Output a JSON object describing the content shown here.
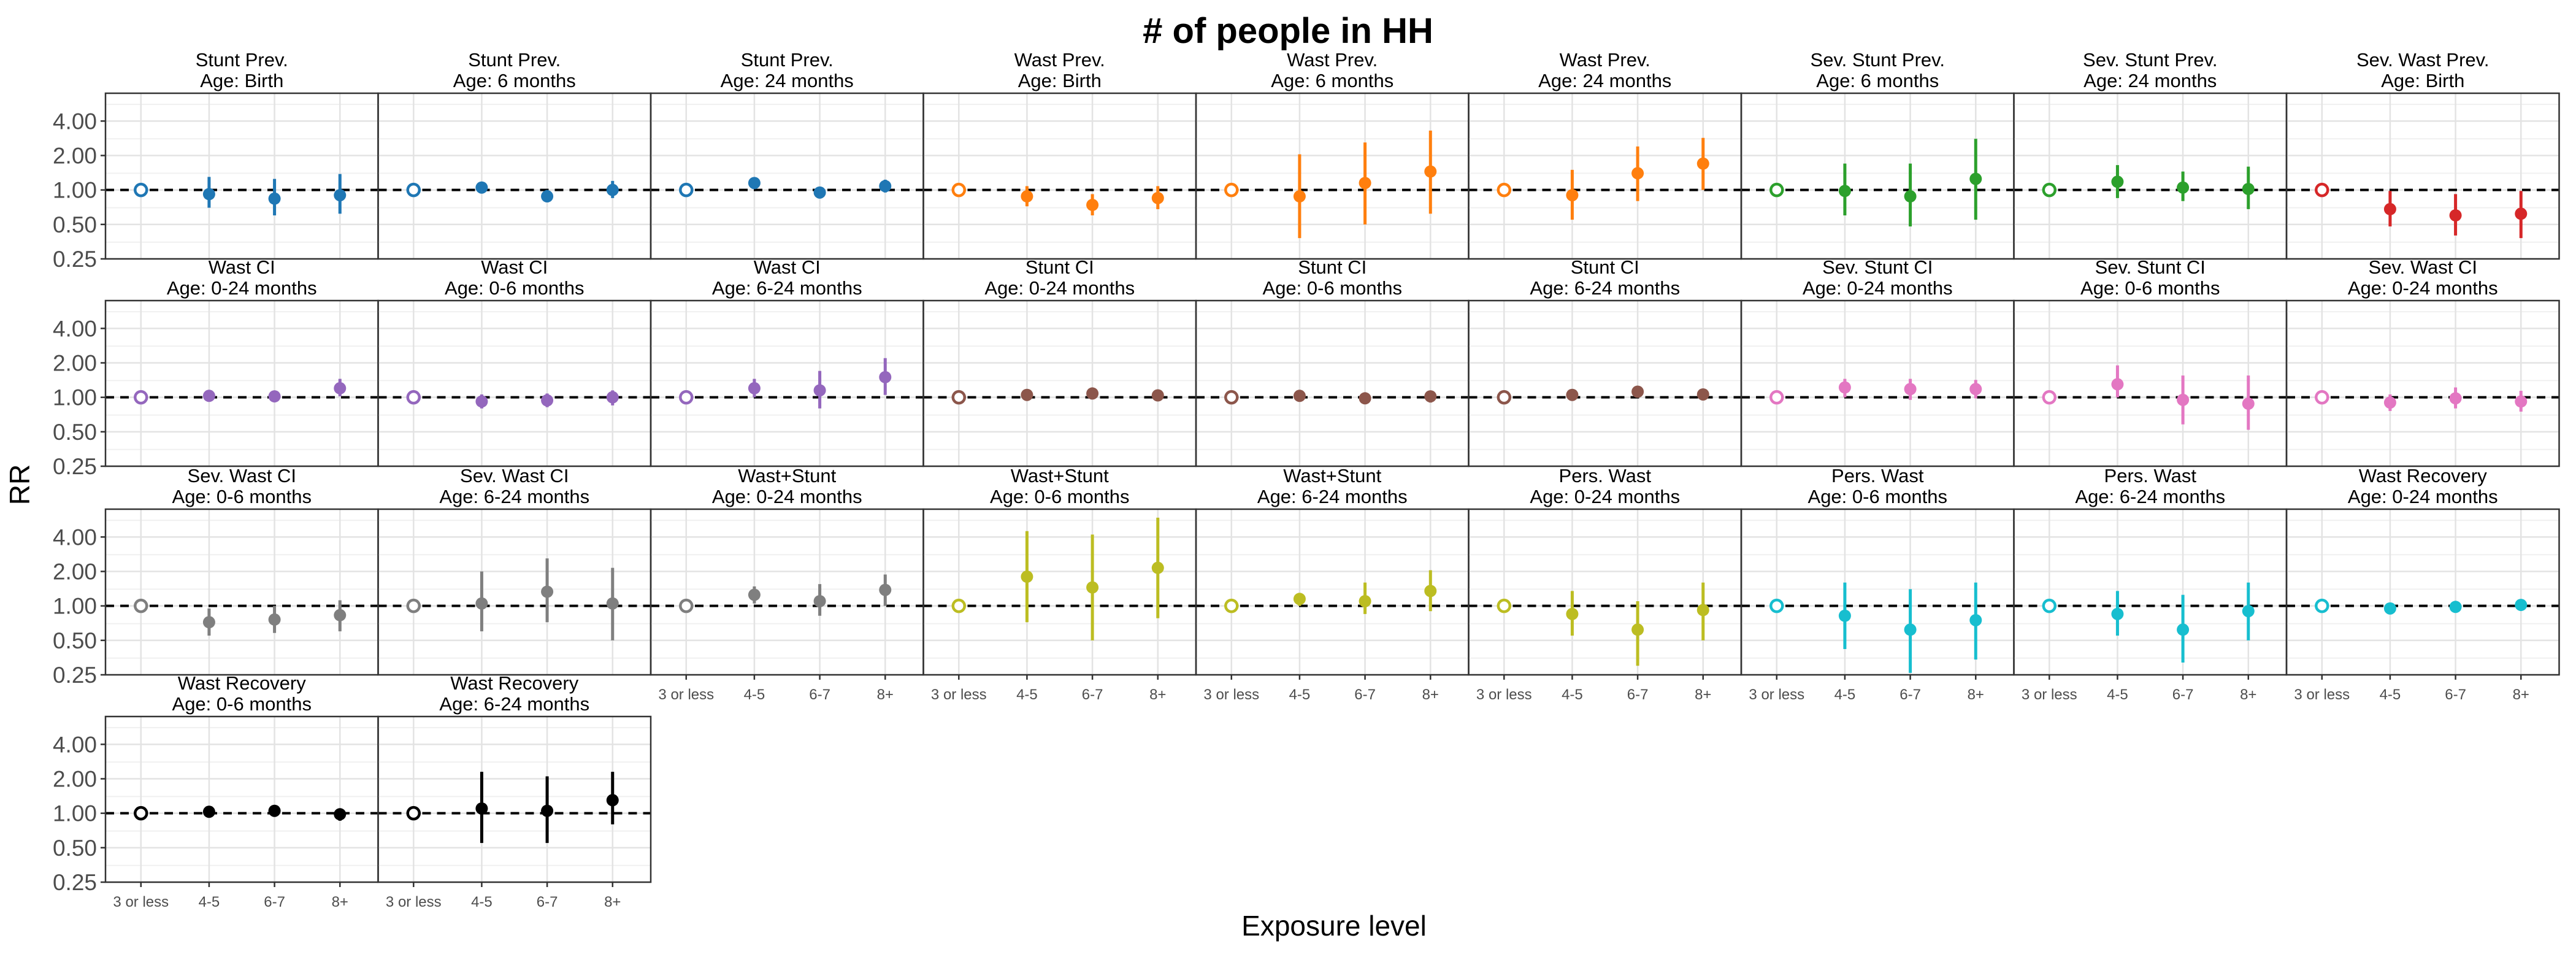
{
  "chart_data": {
    "type": "scatter",
    "title": "# of people in HH",
    "xlabel": "Exposure level",
    "ylabel": "RR",
    "y_scale": "log",
    "ylim": [
      0.25,
      7
    ],
    "y_ticks": [
      0.25,
      0.5,
      1,
      2,
      4
    ],
    "y_tick_labels": [
      "0.25",
      "0.50",
      "1.00",
      "2.00",
      "4.00"
    ],
    "reference_line": 1,
    "grid": true,
    "categories": [
      "3 or less",
      "4-5",
      "6-7",
      "8+"
    ],
    "reference_category": "3 or less",
    "panels": [
      {
        "title": "Stunt Prev.",
        "subtitle": "Age: Birth",
        "color": "#1f77b4",
        "rr": [
          1.0,
          0.92,
          0.84,
          0.9
        ],
        "lower": [
          1.0,
          0.7,
          0.6,
          0.62
        ],
        "upper": [
          1.0,
          1.3,
          1.25,
          1.38
        ]
      },
      {
        "title": "Stunt Prev.",
        "subtitle": "Age: 6 months",
        "color": "#1f77b4",
        "rr": [
          1.0,
          1.05,
          0.88,
          1.0
        ],
        "lower": [
          1.0,
          0.95,
          0.78,
          0.85
        ],
        "upper": [
          1.0,
          1.16,
          1.0,
          1.2
        ]
      },
      {
        "title": "Stunt Prev.",
        "subtitle": "Age: 24 months",
        "color": "#1f77b4",
        "rr": [
          1.0,
          1.15,
          0.95,
          1.08
        ],
        "lower": [
          1.0,
          1.08,
          0.89,
          0.95
        ],
        "upper": [
          1.0,
          1.23,
          1.02,
          1.23
        ]
      },
      {
        "title": "Wast Prev.",
        "subtitle": "Age: Birth",
        "color": "#ff7f0e",
        "rr": [
          1.0,
          0.88,
          0.74,
          0.85
        ],
        "lower": [
          1.0,
          0.72,
          0.6,
          0.68
        ],
        "upper": [
          1.0,
          1.08,
          0.92,
          1.08
        ]
      },
      {
        "title": "Wast Prev.",
        "subtitle": "Age: 6 months",
        "color": "#ff7f0e",
        "rr": [
          1.0,
          0.88,
          1.15,
          1.45
        ],
        "lower": [
          1.0,
          0.38,
          0.5,
          0.62
        ],
        "upper": [
          1.0,
          2.05,
          2.6,
          3.3
        ]
      },
      {
        "title": "Wast Prev.",
        "subtitle": "Age: 24 months",
        "color": "#ff7f0e",
        "rr": [
          1.0,
          0.9,
          1.4,
          1.7
        ],
        "lower": [
          1.0,
          0.55,
          0.8,
          1.0
        ],
        "upper": [
          1.0,
          1.5,
          2.4,
          2.85
        ]
      },
      {
        "title": "Sev. Stunt Prev.",
        "subtitle": "Age: 6 months",
        "color": "#2ca02c",
        "rr": [
          1.0,
          0.98,
          0.88,
          1.25
        ],
        "lower": [
          1.0,
          0.6,
          0.48,
          0.55
        ],
        "upper": [
          1.0,
          1.7,
          1.7,
          2.8
        ]
      },
      {
        "title": "Sev. Stunt Prev.",
        "subtitle": "Age: 24 months",
        "color": "#2ca02c",
        "rr": [
          1.0,
          1.18,
          1.05,
          1.02
        ],
        "lower": [
          1.0,
          0.85,
          0.8,
          0.68
        ],
        "upper": [
          1.0,
          1.65,
          1.45,
          1.6
        ]
      },
      {
        "title": "Sev. Wast Prev.",
        "subtitle": "Age: Birth",
        "color": "#d62728",
        "rr": [
          1.0,
          0.68,
          0.6,
          0.62
        ],
        "lower": [
          1.0,
          0.48,
          0.4,
          0.38
        ],
        "upper": [
          1.0,
          0.98,
          0.92,
          0.98
        ]
      },
      {
        "title": "Wast CI",
        "subtitle": "Age: 0-24 months",
        "color": "#9467bd",
        "rr": [
          1.0,
          1.03,
          1.02,
          1.2
        ],
        "lower": [
          1.0,
          0.92,
          0.95,
          1.02
        ],
        "upper": [
          1.0,
          1.15,
          1.1,
          1.45
        ]
      },
      {
        "title": "Wast CI",
        "subtitle": "Age: 0-6 months",
        "color": "#9467bd",
        "rr": [
          1.0,
          0.92,
          0.94,
          1.0
        ],
        "lower": [
          1.0,
          0.8,
          0.82,
          0.85
        ],
        "upper": [
          1.0,
          1.06,
          1.08,
          1.15
        ]
      },
      {
        "title": "Wast CI",
        "subtitle": "Age: 6-24 months",
        "color": "#9467bd",
        "rr": [
          1.0,
          1.2,
          1.15,
          1.5
        ],
        "lower": [
          1.0,
          1.0,
          0.8,
          1.05
        ],
        "upper": [
          1.0,
          1.45,
          1.7,
          2.2
        ]
      },
      {
        "title": "Stunt CI",
        "subtitle": "Age: 0-24 months",
        "color": "#8c564b",
        "rr": [
          1.0,
          1.05,
          1.08,
          1.04
        ],
        "lower": [
          1.0,
          1.0,
          1.03,
          0.99
        ],
        "upper": [
          1.0,
          1.1,
          1.13,
          1.09
        ]
      },
      {
        "title": "Stunt CI",
        "subtitle": "Age: 0-6 months",
        "color": "#8c564b",
        "rr": [
          1.0,
          1.03,
          0.98,
          1.02
        ],
        "lower": [
          1.0,
          0.94,
          0.9,
          0.9
        ],
        "upper": [
          1.0,
          1.12,
          1.06,
          1.14
        ]
      },
      {
        "title": "Stunt CI",
        "subtitle": "Age: 6-24 months",
        "color": "#8c564b",
        "rr": [
          1.0,
          1.05,
          1.12,
          1.06
        ],
        "lower": [
          1.0,
          1.0,
          1.05,
          0.98
        ],
        "upper": [
          1.0,
          1.1,
          1.19,
          1.14
        ]
      },
      {
        "title": "Sev. Stunt CI",
        "subtitle": "Age: 0-24 months",
        "color": "#e377c2",
        "rr": [
          1.0,
          1.22,
          1.18,
          1.18
        ],
        "lower": [
          1.0,
          1.0,
          0.95,
          0.98
        ],
        "upper": [
          1.0,
          1.45,
          1.45,
          1.42
        ]
      },
      {
        "title": "Sev. Stunt CI",
        "subtitle": "Age: 0-6 months",
        "color": "#e377c2",
        "rr": [
          1.0,
          1.3,
          0.95,
          0.88
        ],
        "lower": [
          1.0,
          1.0,
          0.58,
          0.52
        ],
        "upper": [
          1.0,
          1.9,
          1.55,
          1.55
        ]
      },
      {
        "title": "Sev. Wast CI",
        "subtitle": "Age: 0-24 months",
        "color": "#e377c2",
        "rr": [
          1.0,
          0.9,
          0.98,
          0.92
        ],
        "lower": [
          1.0,
          0.76,
          0.8,
          0.75
        ],
        "upper": [
          1.0,
          1.06,
          1.22,
          1.14
        ]
      },
      {
        "title": "Sev. Wast CI",
        "subtitle": "Age: 0-6 months",
        "color": "#7f7f7f",
        "rr": [
          1.0,
          0.72,
          0.76,
          0.83
        ],
        "lower": [
          1.0,
          0.55,
          0.58,
          0.6
        ],
        "upper": [
          1.0,
          0.95,
          1.0,
          1.12
        ]
      },
      {
        "title": "Sev. Wast CI",
        "subtitle": "Age: 6-24 months",
        "color": "#7f7f7f",
        "rr": [
          1.0,
          1.05,
          1.33,
          1.05
        ],
        "lower": [
          1.0,
          0.6,
          0.72,
          0.5
        ],
        "upper": [
          1.0,
          2.0,
          2.6,
          2.15
        ]
      },
      {
        "title": "Wast+Stunt",
        "subtitle": "Age: 0-24 months",
        "color": "#7f7f7f",
        "rr": [
          1.0,
          1.25,
          1.1,
          1.38
        ],
        "lower": [
          1.0,
          1.05,
          0.82,
          1.0
        ],
        "upper": [
          1.0,
          1.48,
          1.55,
          1.88
        ]
      },
      {
        "title": "Wast+Stunt",
        "subtitle": "Age: 0-6 months",
        "color": "#bcbd22",
        "rr": [
          1.0,
          1.8,
          1.45,
          2.15
        ],
        "lower": [
          1.0,
          0.72,
          0.5,
          0.78
        ],
        "upper": [
          1.0,
          4.5,
          4.2,
          5.9
        ]
      },
      {
        "title": "Wast+Stunt",
        "subtitle": "Age: 6-24 months",
        "color": "#bcbd22",
        "rr": [
          1.0,
          1.15,
          1.1,
          1.35
        ],
        "lower": [
          1.0,
          1.0,
          0.85,
          0.9
        ],
        "upper": [
          1.0,
          1.3,
          1.6,
          2.05
        ]
      },
      {
        "title": "Pers. Wast",
        "subtitle": "Age: 0-24 months",
        "color": "#bcbd22",
        "rr": [
          1.0,
          0.85,
          0.62,
          0.92
        ],
        "lower": [
          1.0,
          0.55,
          0.3,
          0.5
        ],
        "upper": [
          1.0,
          1.35,
          1.1,
          1.6
        ]
      },
      {
        "title": "Pers. Wast",
        "subtitle": "Age: 0-6 months",
        "color": "#17becf",
        "rr": [
          1.0,
          0.82,
          0.62,
          0.75
        ],
        "lower": [
          1.0,
          0.42,
          0.26,
          0.34
        ],
        "upper": [
          1.0,
          1.6,
          1.4,
          1.6
        ]
      },
      {
        "title": "Pers. Wast",
        "subtitle": "Age: 6-24 months",
        "color": "#17becf",
        "rr": [
          1.0,
          0.85,
          0.62,
          0.9
        ],
        "lower": [
          1.0,
          0.55,
          0.32,
          0.5
        ],
        "upper": [
          1.0,
          1.35,
          1.25,
          1.6
        ]
      },
      {
        "title": "Wast Recovery",
        "subtitle": "Age: 0-24 months",
        "color": "#17becf",
        "rr": [
          1.0,
          0.95,
          0.98,
          1.02
        ],
        "lower": [
          1.0,
          0.9,
          0.9,
          0.95
        ],
        "upper": [
          1.0,
          1.0,
          1.06,
          1.1
        ]
      },
      {
        "title": "Wast Recovery",
        "subtitle": "Age: 0-6 months",
        "color": "#000000",
        "rr": [
          1.0,
          1.03,
          1.05,
          0.98
        ],
        "lower": [
          1.0,
          0.95,
          0.96,
          0.86
        ],
        "upper": [
          1.0,
          1.1,
          1.15,
          1.1
        ]
      },
      {
        "title": "Wast Recovery",
        "subtitle": "Age: 6-24 months",
        "color": "#000000",
        "rr": [
          1.0,
          1.1,
          1.05,
          1.3
        ],
        "lower": [
          1.0,
          0.55,
          0.55,
          0.8
        ],
        "upper": [
          1.0,
          2.3,
          2.1,
          2.3
        ]
      }
    ]
  }
}
